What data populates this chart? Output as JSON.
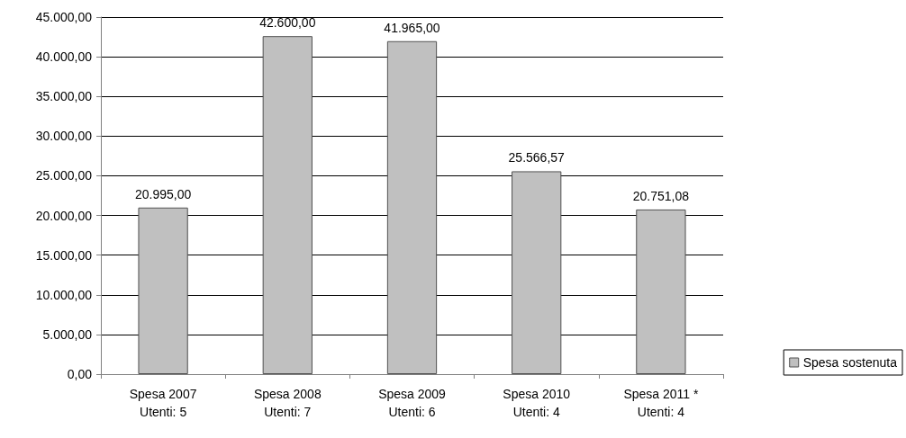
{
  "chart_data": {
    "type": "bar",
    "categories": [
      "Spesa 2007\nUtenti: 5",
      "Spesa 2008\nUtenti: 7",
      "Spesa 2009\nUtenti: 6",
      "Spesa 2010\nUtenti: 4",
      "Spesa 2011 *\nUtenti: 4"
    ],
    "series": [
      {
        "name": "Spesa sostenuta",
        "color": "#c0c0c0",
        "values": [
          20995,
          42600,
          41965,
          25566.57,
          20751.08
        ],
        "value_labels": [
          "20.995,00",
          "42.600,00",
          "41.965,00",
          "25.566,57",
          "20.751,08"
        ]
      }
    ],
    "ylim": [
      0,
      45000
    ],
    "yticks": [
      {
        "value": 0,
        "label": "0,00"
      },
      {
        "value": 5000,
        "label": "5.000,00"
      },
      {
        "value": 10000,
        "label": "10.000,00"
      },
      {
        "value": 15000,
        "label": "15.000,00"
      },
      {
        "value": 20000,
        "label": "20.000,00"
      },
      {
        "value": 25000,
        "label": "25.000,00"
      },
      {
        "value": 30000,
        "label": "30.000,00"
      },
      {
        "value": 35000,
        "label": "35.000,00"
      },
      {
        "value": 40000,
        "label": "40.000,00"
      },
      {
        "value": 45000,
        "label": "45.000,00"
      }
    ],
    "grid": "y",
    "legend": "right"
  }
}
